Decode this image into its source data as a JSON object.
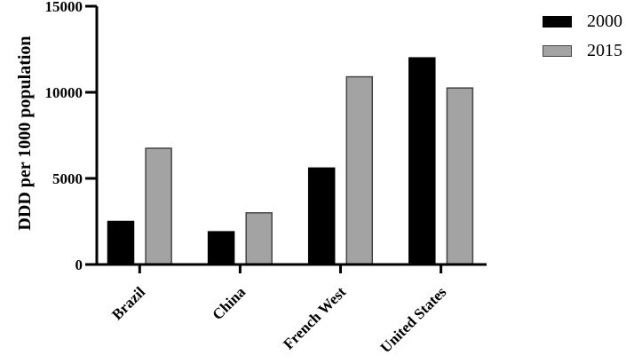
{
  "figure": {
    "background": "#ffffff"
  },
  "chart_data": {
    "type": "bar",
    "title": "",
    "xlabel": "",
    "ylabel": "DDD per 1000 population",
    "categories": [
      "Brazil",
      "China",
      "French West",
      "United States"
    ],
    "series": [
      {
        "name": "2000",
        "color": "#000000",
        "border_color": "#000000",
        "values": [
          2500,
          1900,
          5600,
          12000
        ]
      },
      {
        "name": "2015",
        "color": "#a3a3a3",
        "border_color": "#454545",
        "values": [
          6750,
          3000,
          10900,
          10250
        ]
      }
    ],
    "ylim": [
      0,
      15000
    ],
    "yticks": [
      0,
      5000,
      10000,
      15000
    ],
    "grid": false,
    "legend_position": "top-right",
    "bar_group_gap_note": "paired bars per category, black=2000 left, gray=2015 right"
  }
}
